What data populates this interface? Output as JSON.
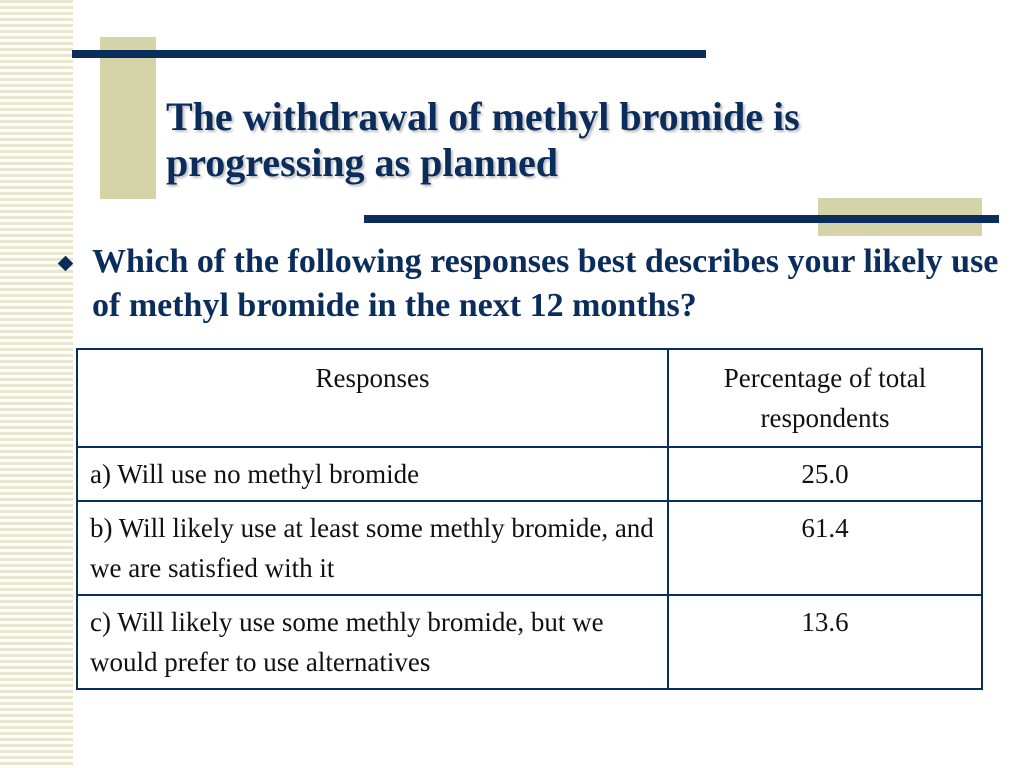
{
  "title": "The withdrawal of methyl bromide is progressing as planned",
  "question": "Which of the following responses best describes your likely use of methyl bromide in the next 12 months?",
  "table": {
    "headers": [
      "Responses",
      "Percentage of total respondents"
    ],
    "rows": [
      {
        "response": "a) Will use no methyl bromide",
        "percentage": "25.0"
      },
      {
        "response": "b) Will likely use at least some methly bromide, and we are satisfied with it",
        "percentage": "61.4"
      },
      {
        "response": "c) Will likely use some methly bromide, but we would prefer to use alternatives",
        "percentage": "13.6"
      }
    ]
  },
  "colors": {
    "accent": "#0b2d5c",
    "decor_tan": "#d5d3a8",
    "stripe": "#e8e6cc"
  },
  "icons": {
    "bullet": "diamond-bullet-icon"
  }
}
